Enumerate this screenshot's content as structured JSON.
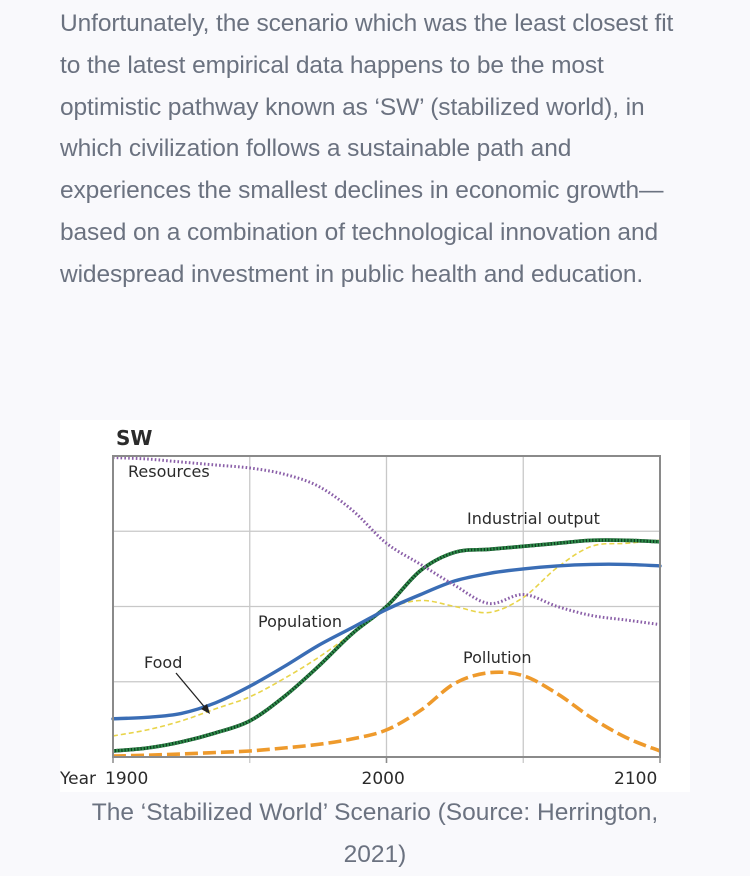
{
  "article": {
    "paragraph": "Unfortunately, the scenario which was the least closest fit to the latest empirical data happens to be the most optimistic pathway known as ‘SW’ (stabilized world), in which civilization follows a sustainable path and experiences the smallest declines in economic growth—based on a combination of technological innovation and widespread investment in public health and education."
  },
  "figure": {
    "caption": "The ‘Stabilized World’ Scenario (Source: Herrington, 2021)"
  },
  "chart_data": {
    "type": "line",
    "title": "SW",
    "xlabel": "Year",
    "ylabel": "",
    "xlim": [
      1900,
      2100
    ],
    "ylim": [
      0,
      1
    ],
    "x_ticks": [
      1900,
      2000,
      2100
    ],
    "x_tick_labels": [
      "1900",
      "2000",
      "2100"
    ],
    "x_gridlines": [
      1950,
      2000,
      2050
    ],
    "y_gridlines": [
      0.25,
      0.5,
      0.75
    ],
    "grid": true,
    "legend": "inline labels",
    "colors": {
      "resources": "#8a5fa8",
      "population": "#3a6db5",
      "food": "#e8d44a",
      "industrial_output": "#1f6b3a",
      "pollution": "#ee9a2c",
      "grid": "#c8c8c8",
      "frame": "#8a8a8a"
    },
    "x": [
      1900,
      1912.5,
      1925,
      1937.5,
      1950,
      1962.5,
      1975,
      1987.5,
      2000,
      2012.5,
      2025,
      2037.5,
      2050,
      2062.5,
      2075,
      2087.5,
      2100
    ],
    "series": [
      {
        "key": "resources",
        "name": "Resources",
        "style": "dotted",
        "values": [
          0.995,
          0.99,
          0.98,
          0.97,
          0.96,
          0.94,
          0.9,
          0.82,
          0.71,
          0.64,
          0.57,
          0.51,
          0.54,
          0.5,
          0.47,
          0.455,
          0.44
        ]
      },
      {
        "key": "population",
        "name": "Population",
        "style": "solid",
        "values": [
          0.127,
          0.132,
          0.145,
          0.18,
          0.235,
          0.3,
          0.37,
          0.43,
          0.49,
          0.54,
          0.585,
          0.61,
          0.625,
          0.635,
          0.64,
          0.64,
          0.635
        ]
      },
      {
        "key": "food",
        "name": "Food",
        "style": "dashed-thin",
        "values": [
          0.07,
          0.09,
          0.12,
          0.16,
          0.2,
          0.26,
          0.33,
          0.41,
          0.49,
          0.52,
          0.5,
          0.48,
          0.53,
          0.63,
          0.7,
          0.71,
          0.72
        ]
      },
      {
        "key": "industrial_output",
        "name": "Industrial output",
        "style": "dotted-thick",
        "values": [
          0.02,
          0.03,
          0.05,
          0.08,
          0.12,
          0.2,
          0.3,
          0.41,
          0.5,
          0.62,
          0.68,
          0.69,
          0.7,
          0.71,
          0.72,
          0.72,
          0.715
        ]
      },
      {
        "key": "pollution",
        "name": "Pollution",
        "style": "dashed-thick",
        "values": [
          0.003,
          0.006,
          0.01,
          0.015,
          0.02,
          0.03,
          0.042,
          0.06,
          0.09,
          0.155,
          0.245,
          0.28,
          0.27,
          0.21,
          0.13,
          0.065,
          0.02
        ]
      }
    ],
    "labels": [
      {
        "key": "resources",
        "text": "Resources"
      },
      {
        "key": "industrial_output",
        "text": "Industrial output"
      },
      {
        "key": "population",
        "text": "Population"
      },
      {
        "key": "food",
        "text": "Food"
      },
      {
        "key": "pollution",
        "text": "Pollution"
      }
    ]
  }
}
